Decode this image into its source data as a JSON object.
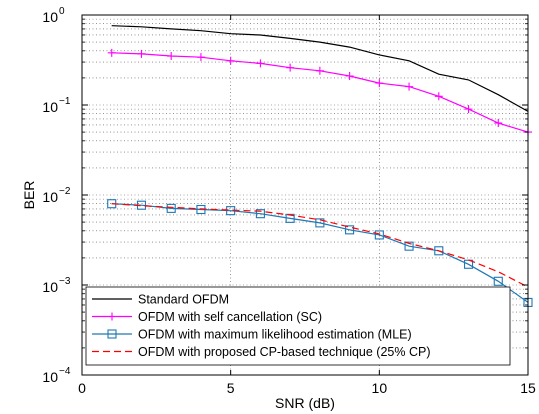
{
  "chart_data": {
    "type": "line",
    "title": "",
    "xlabel": "SNR (dB)",
    "ylabel": "BER",
    "xlim": [
      0,
      15
    ],
    "ylim": [
      0.0001,
      1
    ],
    "yscale": "log",
    "grid": true,
    "legend_position": "bottom-left",
    "x_ticks": [
      0,
      5,
      10,
      15
    ],
    "y_ticks": [
      {
        "value": 1,
        "base": "10",
        "exp": "0"
      },
      {
        "value": 0.1,
        "base": "10",
        "exp": "−1"
      },
      {
        "value": 0.01,
        "base": "10",
        "exp": "−2"
      },
      {
        "value": 0.001,
        "base": "10",
        "exp": "−3"
      },
      {
        "value": 0.0001,
        "base": "10",
        "exp": "−4"
      }
    ],
    "series": [
      {
        "name": "Standard OFDM",
        "color": "#000000",
        "dash": "solid",
        "marker": "none",
        "x": [
          1,
          2,
          3,
          4,
          5,
          6,
          7,
          8,
          9,
          10,
          11,
          12,
          13,
          14,
          15
        ],
        "y": [
          0.76,
          0.74,
          0.7,
          0.67,
          0.62,
          0.6,
          0.55,
          0.5,
          0.44,
          0.36,
          0.31,
          0.22,
          0.19,
          0.13,
          0.085
        ]
      },
      {
        "name": "OFDM with self cancellation (SC)",
        "color": "#ff00ff",
        "dash": "solid",
        "marker": "plus",
        "x": [
          1,
          2,
          3,
          4,
          5,
          6,
          7,
          8,
          9,
          10,
          11,
          12,
          13,
          14,
          15
        ],
        "y": [
          0.38,
          0.37,
          0.35,
          0.34,
          0.31,
          0.29,
          0.26,
          0.24,
          0.21,
          0.175,
          0.16,
          0.125,
          0.09,
          0.063,
          0.05
        ]
      },
      {
        "name": "OFDM with maximum likelihood estimation (MLE)",
        "color": "#1f77b4",
        "dash": "solid",
        "marker": "square",
        "x": [
          1,
          2,
          3,
          4,
          5,
          6,
          7,
          8,
          9,
          10,
          11,
          12,
          13,
          14,
          15
        ],
        "y": [
          0.008,
          0.0077,
          0.0071,
          0.0069,
          0.0067,
          0.0062,
          0.0055,
          0.0049,
          0.0041,
          0.0036,
          0.0027,
          0.0024,
          0.0017,
          0.0011,
          0.00064
        ]
      },
      {
        "name": "OFDM with proposed CP-based technique (25% CP)",
        "color": "#ff0000",
        "dash": "dashed",
        "marker": "none",
        "x": [
          1,
          2,
          3,
          4,
          5,
          6,
          7,
          8,
          9,
          10,
          11,
          12,
          13,
          14,
          15
        ],
        "y": [
          0.008,
          0.0076,
          0.0073,
          0.007,
          0.0068,
          0.0066,
          0.006,
          0.0053,
          0.0044,
          0.0037,
          0.0029,
          0.0024,
          0.0019,
          0.0014,
          0.00095
        ]
      }
    ]
  }
}
